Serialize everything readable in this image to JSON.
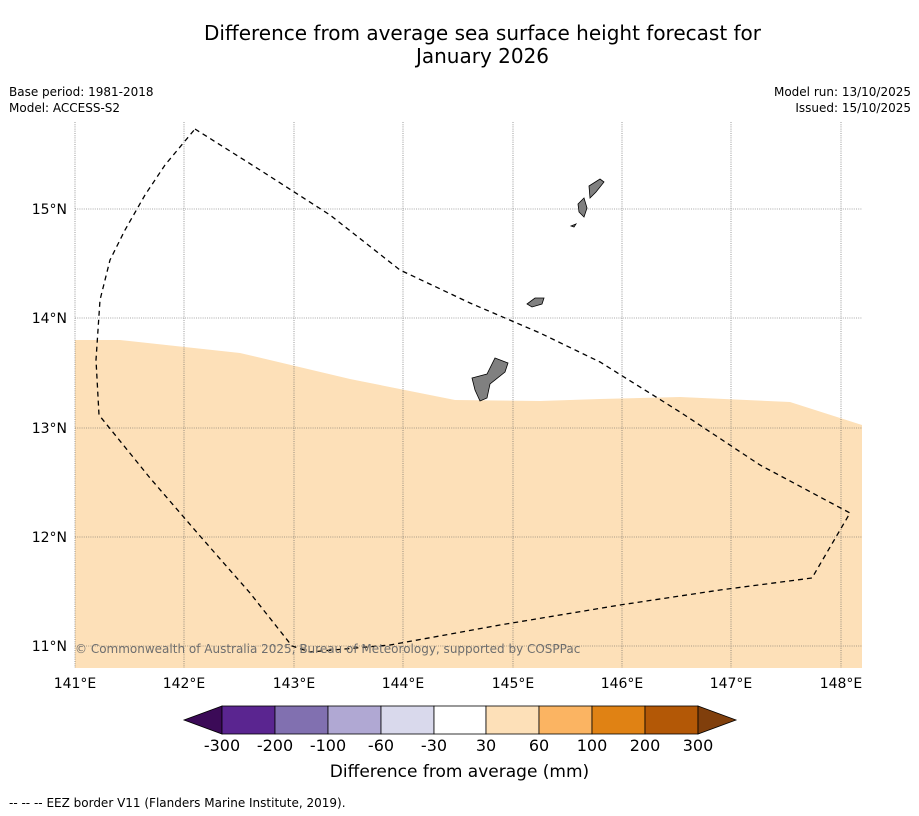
{
  "title": {
    "line1": "Difference from average sea surface height forecast for",
    "line2": "January 2026"
  },
  "meta": {
    "base_period": "Base period: 1981-2018",
    "model": "Model: ACCESS-S2",
    "model_run": "Model run: 13/10/2025",
    "issued": "Issued: 15/10/2025"
  },
  "map": {
    "lon_labels": [
      "141°E",
      "142°E",
      "143°E",
      "144°E",
      "145°E",
      "146°E",
      "147°E",
      "148°E"
    ],
    "lat_labels": [
      "15°N",
      "14°N",
      "13°N",
      "12°N",
      "11°N"
    ],
    "fill_color": "#fde0b8",
    "land_color": "#808080",
    "copyright": "© Commonwealth of Australia 2025, Bureau of Meteorology, supported by COSPPac"
  },
  "colorbar": {
    "ticks": [
      "-300",
      "-200",
      "-100",
      "-60",
      "-30",
      "30",
      "60",
      "100",
      "200",
      "300"
    ],
    "colors": [
      "#5a2590",
      "#8170b0",
      "#b0a8d3",
      "#d9d9ec",
      "#ffffff",
      "#fde0b8",
      "#fbb462",
      "#e08214",
      "#b35806"
    ],
    "under_color": "#3b0a57",
    "over_color": "#803f0c",
    "title": "Difference from average (mm)"
  },
  "footer": {
    "legend_symbol": "--  --  --",
    "legend_text": "EEZ border V11 (Flanders Marine Institute, 2019)."
  }
}
